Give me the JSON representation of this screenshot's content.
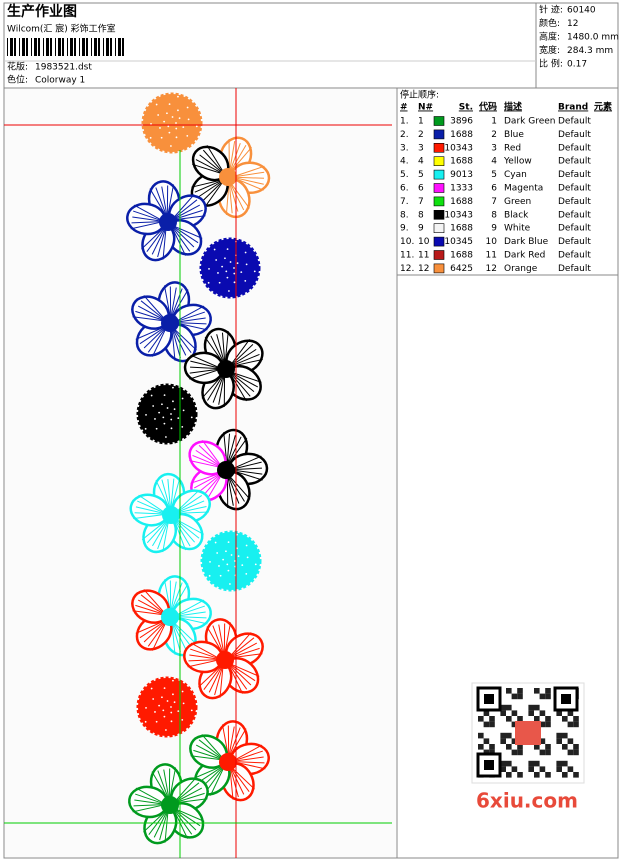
{
  "header": {
    "title": "生产作业图",
    "studio": "Wilcom(汇 宸) 彩饰工作室",
    "design_label": "花版:",
    "design": "1983521.dst",
    "colorway_label": "色位:",
    "colorway": "Colorway 1"
  },
  "stats": [
    {
      "label": "针 迹:",
      "value": "60140"
    },
    {
      "label": "颜色:",
      "value": "12"
    },
    {
      "label": "高度:",
      "value": "1480.0 mm"
    },
    {
      "label": "宽度:",
      "value": "284.3 mm"
    },
    {
      "label": "比 例:",
      "value": "0.17"
    }
  ],
  "stop_sequence": {
    "title": "停止顺序:",
    "columns": [
      "#",
      "N#",
      "St.",
      "代码",
      "描述",
      "Brand",
      "元素"
    ],
    "rows": [
      {
        "index": "1.",
        "needle": 1,
        "color": "#009a1e",
        "stitches": 3896,
        "code": 1,
        "description": "Dark Green",
        "brand": "Default"
      },
      {
        "index": "2.",
        "needle": 2,
        "color": "#0a1fa8",
        "stitches": 1688,
        "code": 2,
        "description": "Blue",
        "brand": "Default"
      },
      {
        "index": "3.",
        "needle": 3,
        "color": "#ff1a00",
        "stitches": 10343,
        "code": 3,
        "description": "Red",
        "brand": "Default"
      },
      {
        "index": "4.",
        "needle": 4,
        "color": "#ffff00",
        "stitches": 1688,
        "code": 4,
        "description": "Yellow",
        "brand": "Default"
      },
      {
        "index": "5.",
        "needle": 5,
        "color": "#18f0f0",
        "stitches": 9013,
        "code": 5,
        "description": "Cyan",
        "brand": "Default"
      },
      {
        "index": "6.",
        "needle": 6,
        "color": "#ff10ff",
        "stitches": 1333,
        "code": 6,
        "description": "Magenta",
        "brand": "Default"
      },
      {
        "index": "7.",
        "needle": 7,
        "color": "#10e010",
        "stitches": 1688,
        "code": 7,
        "description": "Green",
        "brand": "Default"
      },
      {
        "index": "8.",
        "needle": 8,
        "color": "#000000",
        "stitches": 10343,
        "code": 8,
        "description": "Black",
        "brand": "Default"
      },
      {
        "index": "9.",
        "needle": 9,
        "color": "#f4f4f4",
        "stitches": 1688,
        "code": 9,
        "description": "White",
        "brand": "Default"
      },
      {
        "index": "10.",
        "needle": 10,
        "color": "#0a0ab0",
        "stitches": 10345,
        "code": 10,
        "description": "Dark Blue",
        "brand": "Default"
      },
      {
        "index": "11.",
        "needle": 11,
        "color": "#b81a1a",
        "stitches": 1688,
        "code": 11,
        "description": "Dark Red",
        "brand": "Default"
      },
      {
        "index": "12.",
        "needle": 12,
        "color": "#f8903c",
        "stitches": 6425,
        "code": 12,
        "description": "Orange",
        "brand": "Default"
      }
    ]
  },
  "watermark": "6xiu.com"
}
